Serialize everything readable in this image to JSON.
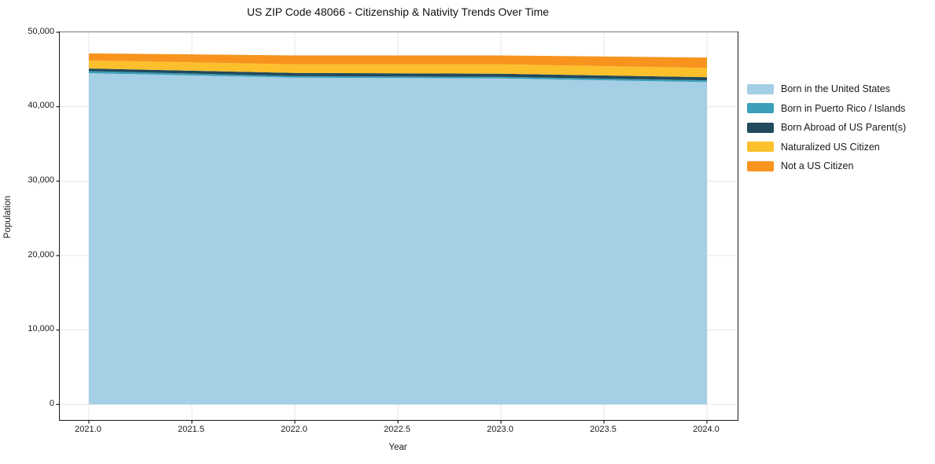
{
  "chart_data": {
    "type": "area",
    "stacked": true,
    "title": "US ZIP Code 48066 - Citizenship & Nativity Trends Over Time",
    "xlabel": "Year",
    "ylabel": "Population",
    "x": [
      2021,
      2022,
      2023,
      2024
    ],
    "xlim": [
      2021,
      2024
    ],
    "ylim": [
      0,
      50000
    ],
    "grid": true,
    "grid_color": "#e7e7e7",
    "axis_color": "#1a1a1a",
    "legend_position": "right-outside",
    "x_tick_labels": [
      "2021.0",
      "2021.5",
      "2022.0",
      "2022.5",
      "2023.0",
      "2023.5",
      "2024.0"
    ],
    "y_tick_labels": [
      "0",
      "10,000",
      "20,000",
      "30,000",
      "40,000",
      "50,000"
    ],
    "series": [
      {
        "name": "Born in the United States",
        "color": "#a4cfe5",
        "values": [
          44500,
          43900,
          43800,
          43300
        ]
      },
      {
        "name": "Born in Puerto Rico / Islands",
        "color": "#3d9fba",
        "values": [
          280,
          210,
          210,
          240
        ]
      },
      {
        "name": "Born Abroad of US Parent(s)",
        "color": "#214a5c",
        "values": [
          350,
          420,
          420,
          420
        ]
      },
      {
        "name": "Naturalized US Citizen",
        "color": "#fcc02c",
        "values": [
          1080,
          1160,
          1270,
          1240
        ]
      },
      {
        "name": "Not a US Citizen",
        "color": "#f8941e",
        "values": [
          950,
          1200,
          1180,
          1400
        ]
      }
    ]
  }
}
